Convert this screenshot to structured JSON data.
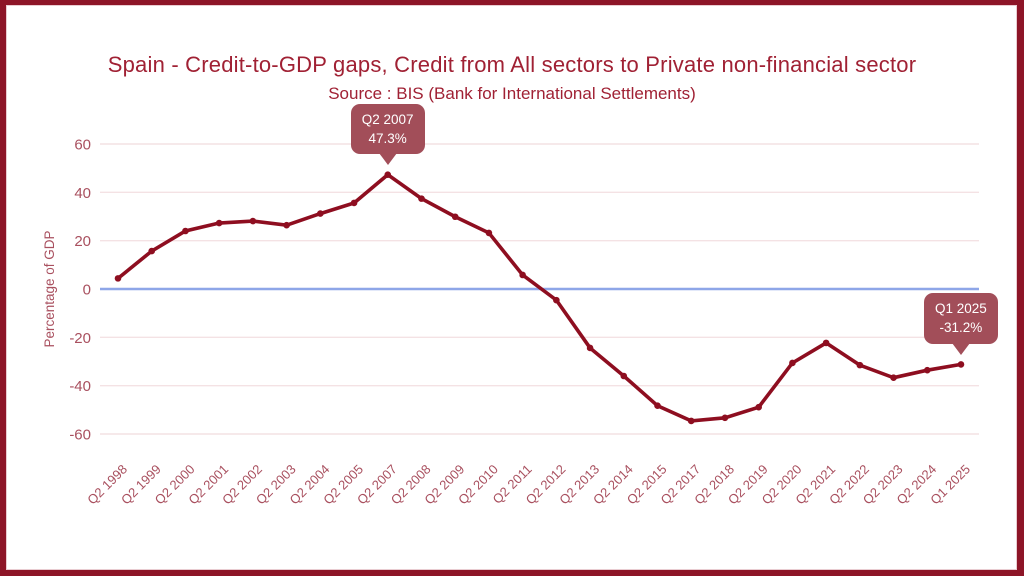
{
  "colors": {
    "frame_border": "#8D1527",
    "frame_inner_line": "#E9CCD1",
    "title_text": "#A02134",
    "axis_text": "#A9505F",
    "line": "#8E0E20",
    "gridline": "#F4E2E4",
    "zero_line": "#8EA6E8",
    "callout_bg": "#A24E59",
    "callout_text": "#FFFFFF"
  },
  "chart_data": {
    "type": "line",
    "title": "Spain - Credit-to-GDP gaps, Credit from All sectors to Private non-financial sector",
    "subtitle": "Source : BIS (Bank for International Settlements)",
    "xlabel": "",
    "ylabel": "Percentage of GDP",
    "y_ticks": [
      60,
      40,
      20,
      0,
      -20,
      -40,
      -60
    ],
    "ylim": [
      -70,
      70
    ],
    "grid": true,
    "zero_line_highlighted": true,
    "legend": "none",
    "categories": [
      "Q2 1998",
      "Q2 1999",
      "Q2 2000",
      "Q2 2001",
      "Q2 2002",
      "Q2 2003",
      "Q2 2004",
      "Q2 2005",
      "Q2 2007",
      "Q2 2008",
      "Q2 2009",
      "Q2 2010",
      "Q2 2011",
      "Q2 2012",
      "Q2 2013",
      "Q2 2014",
      "Q2 2015",
      "Q2 2017",
      "Q2 2018",
      "Q2 2019",
      "Q2 2020",
      "Q2 2021",
      "Q2 2022",
      "Q2 2023",
      "Q2 2024",
      "Q1 2025"
    ],
    "series": [
      {
        "name": "Credit-to-GDP gap",
        "values": [
          4.4,
          15.7,
          24.0,
          27.3,
          28.1,
          26.4,
          31.2,
          35.6,
          47.3,
          37.4,
          29.9,
          23.2,
          5.8,
          -4.6,
          -24.4,
          -36.0,
          -48.3,
          -54.6,
          -53.3,
          -48.9,
          -30.6,
          -22.3,
          -31.5,
          -36.7,
          -33.6,
          -31.2
        ]
      }
    ],
    "annotations": [
      {
        "category": "Q2 2007",
        "label": "Q2 2007",
        "value": "47.3%"
      },
      {
        "category": "Q1 2025",
        "label": "Q1 2025",
        "value": "-31.2%"
      }
    ]
  }
}
